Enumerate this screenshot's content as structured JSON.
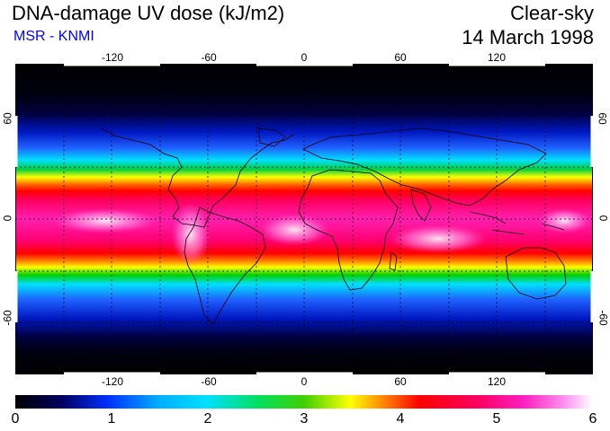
{
  "header": {
    "title": "DNA-damage UV dose (kJ/m2)",
    "subtitle": "MSR - KNMI",
    "condition": "Clear-sky",
    "date": "14 March 1998"
  },
  "map": {
    "longitude_labels": [
      "-120",
      "-60",
      "0",
      "60",
      "120"
    ],
    "latitude_labels": [
      "60",
      "0",
      "-60"
    ],
    "lon_range": [
      -180,
      180
    ],
    "lat_range": [
      -90,
      90
    ],
    "grid": "dotted 30 degree"
  },
  "colorbar": {
    "tick_labels": [
      "0",
      "1",
      "2",
      "3",
      "4",
      "5",
      "6"
    ],
    "range": [
      0,
      6
    ],
    "colors": [
      "#000000",
      "#000080",
      "#0050ff",
      "#00e0ff",
      "#00d000",
      "#ffff00",
      "#ff8000",
      "#ff0000",
      "#ff0090",
      "#ff50e0",
      "#ffffff"
    ]
  }
}
